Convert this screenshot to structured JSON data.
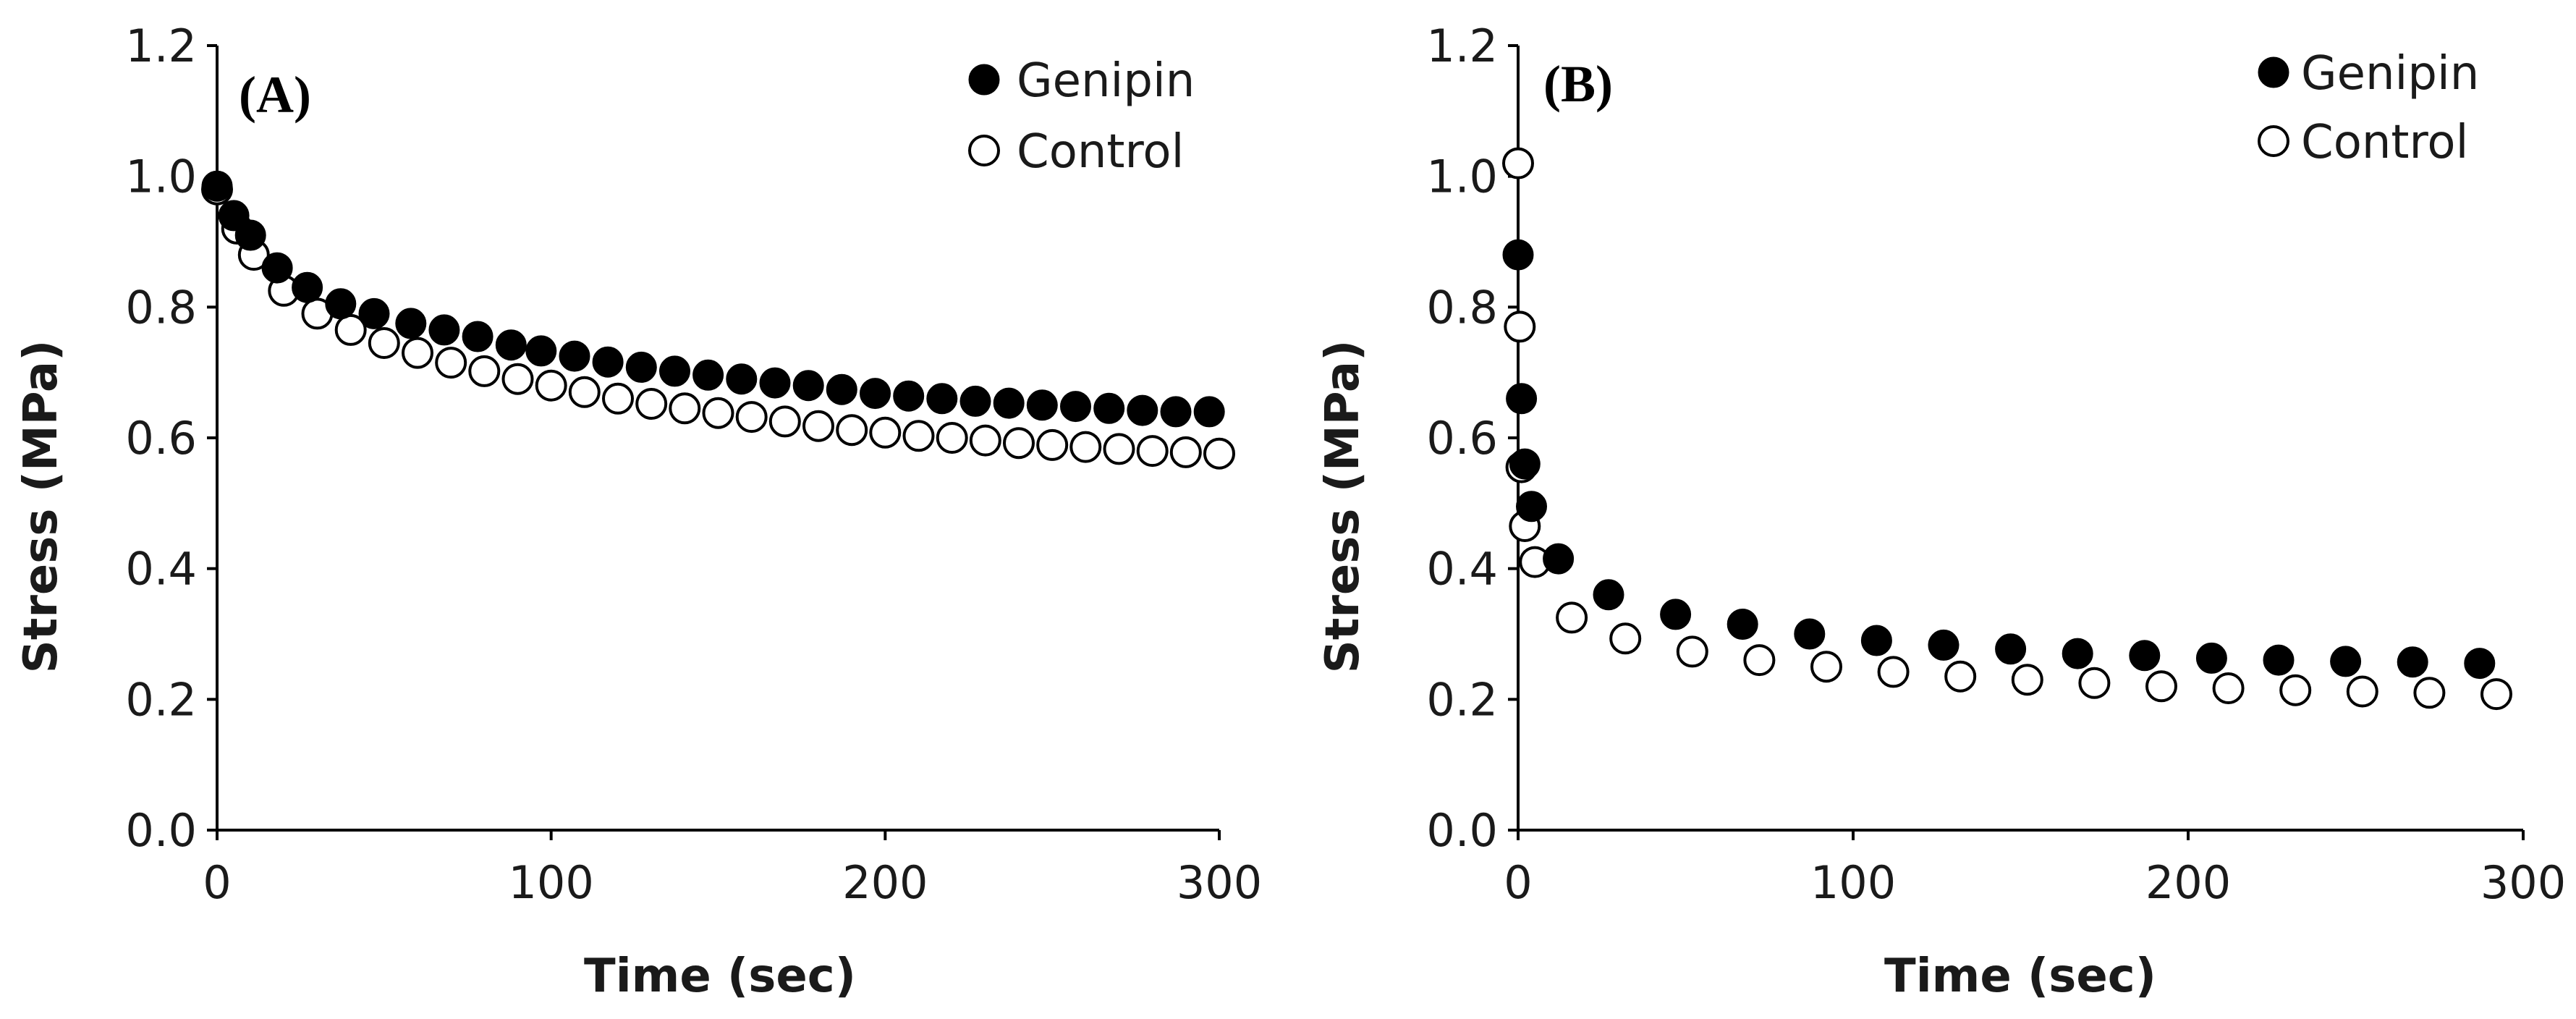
{
  "colors": {
    "marker": "#000000",
    "axis": "#000000",
    "background": "#ffffff"
  },
  "chart_data": [
    {
      "type": "scatter",
      "panel_label": "(A)",
      "xlabel": "Time (sec)",
      "ylabel": "Stress (MPa)",
      "xlim": [
        0,
        300
      ],
      "ylim": [
        0,
        1.2
      ],
      "xticks": [
        "0",
        "100",
        "200",
        "300"
      ],
      "yticks": [
        "0.0",
        "0.2",
        "0.4",
        "0.6",
        "0.8",
        "1.0",
        "1.2"
      ],
      "legend_position": "top-right",
      "series": [
        {
          "name": "Genipin",
          "marker": "filled-circle",
          "x": [
            0,
            5,
            10,
            18,
            27,
            37,
            47,
            58,
            68,
            78,
            88,
            97,
            107,
            117,
            127,
            137,
            147,
            157,
            167,
            177,
            187,
            197,
            207,
            217,
            227,
            237,
            247,
            257,
            267,
            277,
            287,
            297
          ],
          "y": [
            0.985,
            0.94,
            0.91,
            0.86,
            0.83,
            0.805,
            0.79,
            0.775,
            0.765,
            0.755,
            0.742,
            0.733,
            0.725,
            0.716,
            0.708,
            0.702,
            0.696,
            0.69,
            0.684,
            0.68,
            0.674,
            0.668,
            0.664,
            0.66,
            0.656,
            0.653,
            0.65,
            0.648,
            0.645,
            0.642,
            0.64,
            0.64
          ]
        },
        {
          "name": "Control",
          "marker": "open-circle",
          "x": [
            0,
            6,
            11,
            20,
            30,
            40,
            50,
            60,
            70,
            80,
            90,
            100,
            110,
            120,
            130,
            140,
            150,
            160,
            170,
            180,
            190,
            200,
            210,
            220,
            230,
            240,
            250,
            260,
            270,
            280,
            290,
            300
          ],
          "y": [
            0.98,
            0.92,
            0.88,
            0.825,
            0.79,
            0.765,
            0.745,
            0.73,
            0.715,
            0.702,
            0.69,
            0.68,
            0.67,
            0.66,
            0.652,
            0.645,
            0.638,
            0.632,
            0.625,
            0.618,
            0.612,
            0.608,
            0.603,
            0.6,
            0.596,
            0.592,
            0.589,
            0.586,
            0.583,
            0.58,
            0.578,
            0.576
          ]
        }
      ]
    },
    {
      "type": "scatter",
      "panel_label": "(B)",
      "xlabel": "Time (sec)",
      "ylabel": "Stress (MPa)",
      "xlim": [
        0,
        300
      ],
      "ylim": [
        0,
        1.2
      ],
      "xticks": [
        "0",
        "100",
        "200",
        "300"
      ],
      "yticks": [
        "0.0",
        "0.2",
        "0.4",
        "0.6",
        "0.8",
        "1.0",
        "1.2"
      ],
      "legend_position": "top-right",
      "series": [
        {
          "name": "Genipin",
          "marker": "filled-circle",
          "x": [
            0,
            1,
            2,
            4,
            12,
            27,
            47,
            67,
            87,
            107,
            127,
            147,
            167,
            187,
            207,
            227,
            247,
            267,
            287
          ],
          "y": [
            0.88,
            0.66,
            0.56,
            0.495,
            0.415,
            0.36,
            0.33,
            0.315,
            0.3,
            0.29,
            0.283,
            0.277,
            0.27,
            0.267,
            0.263,
            0.26,
            0.258,
            0.257,
            0.255
          ]
        },
        {
          "name": "Control",
          "marker": "open-circle",
          "x": [
            0,
            0.5,
            1,
            2,
            5,
            16,
            32,
            52,
            72,
            92,
            112,
            132,
            152,
            172,
            192,
            212,
            232,
            252,
            272,
            292
          ],
          "y": [
            1.02,
            0.77,
            0.555,
            0.465,
            0.41,
            0.325,
            0.293,
            0.273,
            0.26,
            0.25,
            0.242,
            0.235,
            0.23,
            0.225,
            0.22,
            0.217,
            0.214,
            0.212,
            0.21,
            0.208
          ]
        }
      ]
    }
  ]
}
